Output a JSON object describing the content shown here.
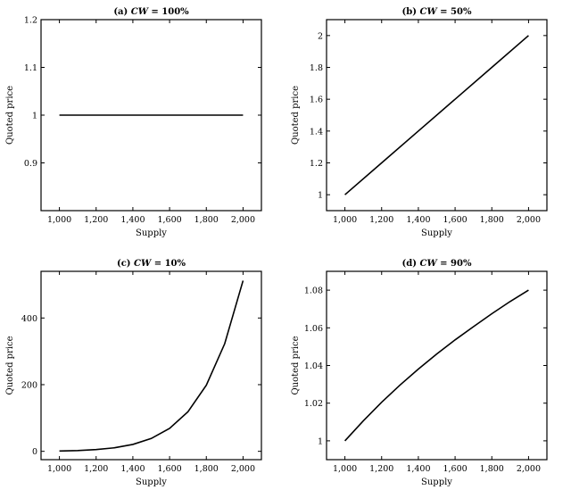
{
  "chart_data": [
    {
      "type": "line",
      "title": "(a) CW = 100%",
      "title_prefix": "(a)",
      "title_var": "CW",
      "title_rest": "= 100%",
      "xlabel": "Supply",
      "ylabel": "Quoted price",
      "xlim": [
        900,
        2100
      ],
      "ylim": [
        0.8,
        1.2
      ],
      "xticks": [
        1000,
        1200,
        1400,
        1600,
        1800,
        2000
      ],
      "xtick_labels": [
        "1,000",
        "1,200",
        "1,400",
        "1,600",
        "1,800",
        "2,000"
      ],
      "yticks": [
        0.9,
        1,
        1.1,
        1.2
      ],
      "ytick_labels": [
        "0.9",
        "1",
        "1.1",
        "1.2"
      ],
      "grid": false,
      "x": [
        1000,
        1200,
        1400,
        1600,
        1800,
        2000
      ],
      "y": [
        1,
        1,
        1,
        1,
        1,
        1
      ]
    },
    {
      "type": "line",
      "title": "(b) CW = 50%",
      "title_prefix": "(b)",
      "title_var": "CW",
      "title_rest": "= 50%",
      "xlabel": "Supply",
      "ylabel": "Quoted price",
      "xlim": [
        900,
        2100
      ],
      "ylim": [
        0.9,
        2.1
      ],
      "xticks": [
        1000,
        1200,
        1400,
        1600,
        1800,
        2000
      ],
      "xtick_labels": [
        "1,000",
        "1,200",
        "1,400",
        "1,600",
        "1,800",
        "2,000"
      ],
      "yticks": [
        1,
        1.2,
        1.4,
        1.6,
        1.8,
        2
      ],
      "ytick_labels": [
        "1",
        "1.2",
        "1.4",
        "1.6",
        "1.8",
        "2"
      ],
      "grid": false,
      "x": [
        1000,
        1200,
        1400,
        1600,
        1800,
        2000
      ],
      "y": [
        1,
        1.2,
        1.4,
        1.6,
        1.8,
        2
      ]
    },
    {
      "type": "line",
      "title": "(c) CW = 10%",
      "title_prefix": "(c)",
      "title_var": "CW",
      "title_rest": "= 10%",
      "xlabel": "Supply",
      "ylabel": "Quoted price",
      "xlim": [
        900,
        2100
      ],
      "ylim": [
        -25,
        540
      ],
      "xticks": [
        1000,
        1200,
        1400,
        1600,
        1800,
        2000
      ],
      "xtick_labels": [
        "1,000",
        "1,200",
        "1,400",
        "1,600",
        "1,800",
        "2,000"
      ],
      "yticks": [
        0,
        200,
        400
      ],
      "ytick_labels": [
        "0",
        "200",
        "400"
      ],
      "grid": false,
      "x": [
        1000,
        1100,
        1200,
        1300,
        1400,
        1500,
        1600,
        1700,
        1800,
        1900,
        2000
      ],
      "y": [
        1,
        2.4,
        5.2,
        10.6,
        20.7,
        38.4,
        68.7,
        118.6,
        198.4,
        322.7,
        512
      ]
    },
    {
      "type": "line",
      "title": "(d) CW = 90%",
      "title_prefix": "(d)",
      "title_var": "CW",
      "title_rest": "= 90%",
      "xlabel": "Supply",
      "ylabel": "Quoted price",
      "xlim": [
        900,
        2100
      ],
      "ylim": [
        0.99,
        1.09
      ],
      "xticks": [
        1000,
        1200,
        1400,
        1600,
        1800,
        2000
      ],
      "xtick_labels": [
        "1,000",
        "1,200",
        "1,400",
        "1,600",
        "1,800",
        "2,000"
      ],
      "yticks": [
        1,
        1.02,
        1.04,
        1.06,
        1.08
      ],
      "ytick_labels": [
        "1",
        "1.02",
        "1.04",
        "1.06",
        "1.08"
      ],
      "grid": false,
      "x": [
        1000,
        1100,
        1200,
        1300,
        1400,
        1500,
        1600,
        1700,
        1800,
        1900,
        2000
      ],
      "y": [
        1,
        1.0106,
        1.0205,
        1.0296,
        1.0381,
        1.0461,
        1.0536,
        1.0606,
        1.0675,
        1.074,
        1.08
      ]
    }
  ]
}
